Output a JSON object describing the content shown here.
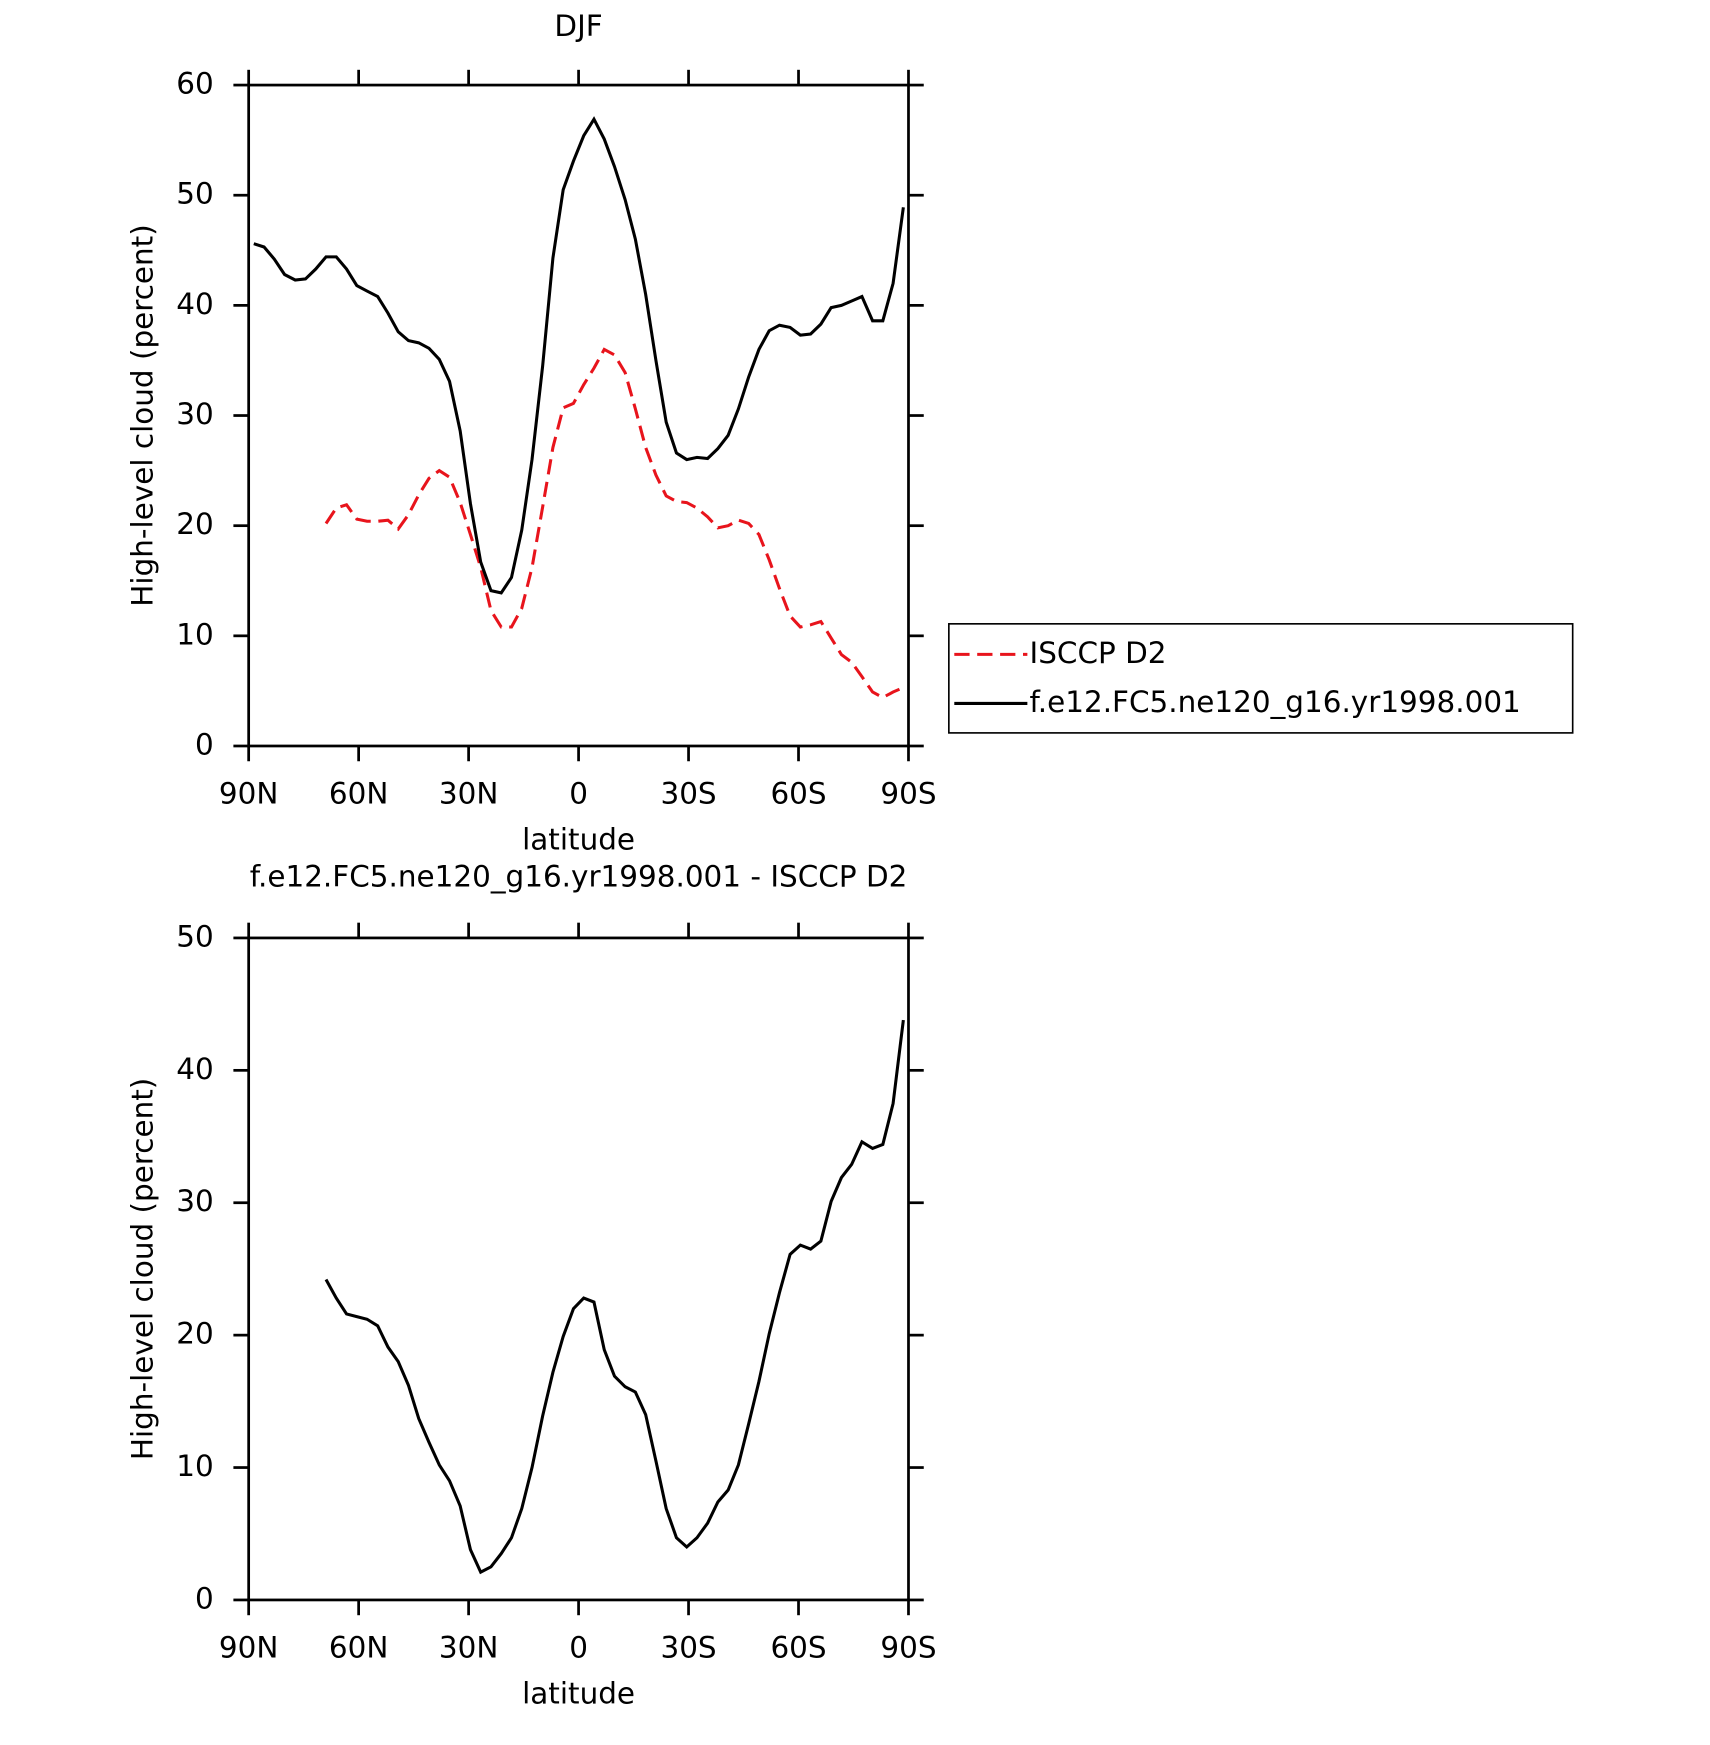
{
  "chart_data": [
    {
      "type": "line",
      "title": "DJF",
      "xlabel": "latitude",
      "ylabel": "High-level cloud (percent)",
      "x": [
        88.6,
        85.8,
        83.0,
        80.2,
        77.3,
        74.5,
        71.7,
        68.9,
        66.1,
        63.3,
        60.5,
        57.7,
        54.8,
        52.0,
        49.2,
        46.4,
        43.6,
        40.8,
        38.0,
        35.2,
        32.3,
        29.5,
        26.7,
        23.9,
        21.1,
        18.3,
        15.5,
        12.7,
        9.8,
        7.0,
        4.2,
        1.4,
        -1.4,
        -4.2,
        -7.0,
        -9.8,
        -12.7,
        -15.5,
        -18.3,
        -21.1,
        -23.9,
        -26.7,
        -29.5,
        -32.3,
        -35.2,
        -38.0,
        -40.8,
        -43.6,
        -46.4,
        -49.2,
        -52.0,
        -54.8,
        -57.7,
        -60.5,
        -63.3,
        -66.1,
        -68.9,
        -71.7,
        -74.5,
        -77.3,
        -80.2,
        -83.0,
        -85.8,
        -88.6
      ],
      "series": [
        {
          "name": "ISCCP D2",
          "color": "#e8141c",
          "dash": true,
          "values": [
            null,
            null,
            null,
            null,
            null,
            null,
            null,
            20.2,
            21.6,
            21.9,
            20.6,
            20.4,
            20.4,
            20.5,
            19.7,
            21,
            22.8,
            24.3,
            25,
            24.4,
            22.1,
            19.2,
            16.2,
            12.3,
            10.8,
            10.8,
            12.5,
            16.2,
            21.7,
            27.1,
            30.7,
            31.1,
            32.8,
            34.3,
            36,
            35.5,
            33.9,
            30.6,
            27.1,
            24.6,
            22.7,
            22.2,
            22.1,
            21.6,
            20.8,
            19.8,
            20,
            20.5,
            20.2,
            19.2,
            16.9,
            14.3,
            11.8,
            10.8,
            11,
            11.3,
            9.8,
            8.3,
            7.6,
            6.3,
            4.9,
            4.4,
            4.9,
            5.3
          ]
        },
        {
          "name": "f.e12.FC5.ne120_g16.yr1998.001",
          "color": "#000000",
          "dash": false,
          "values": [
            45.6,
            45.3,
            44.2,
            42.8,
            42.3,
            42.4,
            43.3,
            44.4,
            44.4,
            43.3,
            41.8,
            41.3,
            40.8,
            39.3,
            37.6,
            36.8,
            36.6,
            36.1,
            35.1,
            33.1,
            28.6,
            22,
            16.7,
            14.1,
            13.9,
            15.3,
            19.6,
            26,
            34.5,
            44.3,
            50.5,
            53.1,
            55.4,
            56.9,
            55.1,
            52.6,
            49.6,
            46,
            41,
            35,
            29.4,
            26.6,
            26,
            26.2,
            26.1,
            27,
            28.2,
            30.6,
            33.5,
            36,
            37.7,
            38.2,
            38,
            37.3,
            37.4,
            38.3,
            39.8,
            40,
            40.4,
            40.8,
            38.6,
            38.6,
            42,
            48.9
          ]
        }
      ],
      "xlim": [
        90,
        -90
      ],
      "xticks": [
        {
          "value": 90,
          "label": "90N"
        },
        {
          "value": 60,
          "label": "60N"
        },
        {
          "value": 30,
          "label": "30N"
        },
        0,
        {
          "value": -30,
          "label": "30S"
        },
        {
          "value": -60,
          "label": "60S"
        },
        {
          "value": -90,
          "label": "90S"
        }
      ],
      "ylim": [
        0,
        60
      ],
      "yticks": [
        0,
        10,
        20,
        30,
        40,
        50,
        60
      ],
      "legend": "right"
    },
    {
      "type": "line",
      "title": "f.e12.FC5.ne120_g16.yr1998.001 - ISCCP D2",
      "xlabel": "latitude",
      "ylabel": "High-level cloud (percent)",
      "x": [
        88.6,
        85.8,
        83.0,
        80.2,
        77.3,
        74.5,
        71.7,
        68.9,
        66.1,
        63.3,
        60.5,
        57.7,
        54.8,
        52.0,
        49.2,
        46.4,
        43.6,
        40.8,
        38.0,
        35.2,
        32.3,
        29.5,
        26.7,
        23.9,
        21.1,
        18.3,
        15.5,
        12.7,
        9.8,
        7.0,
        4.2,
        1.4,
        -1.4,
        -4.2,
        -7.0,
        -9.8,
        -12.7,
        -15.5,
        -18.3,
        -21.1,
        -23.9,
        -26.7,
        -29.5,
        -32.3,
        -35.2,
        -38.0,
        -40.8,
        -43.6,
        -46.4,
        -49.2,
        -52.0,
        -54.8,
        -57.7,
        -60.5,
        -63.3,
        -66.1,
        -68.9,
        -71.7,
        -74.5,
        -77.3,
        -80.2,
        -83.0,
        -85.8,
        -88.6
      ],
      "values": [
        null,
        null,
        null,
        null,
        null,
        null,
        null,
        24.2,
        22.8,
        21.6,
        21.4,
        21.2,
        20.7,
        19.1,
        18,
        16.2,
        13.7,
        11.9,
        10.2,
        9,
        7.1,
        3.8,
        2.1,
        2.5,
        3.5,
        4.7,
        6.9,
        10,
        13.9,
        17.2,
        19.9,
        22,
        22.8,
        22.5,
        18.9,
        16.9,
        16.1,
        15.7,
        14,
        10.5,
        6.9,
        4.7,
        4,
        4.7,
        5.8,
        7.4,
        8.3,
        10.2,
        13.3,
        16.5,
        20.1,
        23.2,
        26.1,
        26.8,
        26.5,
        27.1,
        30.1,
        31.9,
        32.9,
        34.6,
        34.1,
        34.4,
        37.5,
        43.8
      ],
      "color": "#000000",
      "xlim": [
        90,
        -90
      ],
      "xticks": [
        {
          "value": 90,
          "label": "90N"
        },
        {
          "value": 60,
          "label": "60N"
        },
        {
          "value": 30,
          "label": "30N"
        },
        0,
        {
          "value": -30,
          "label": "30S"
        },
        {
          "value": -60,
          "label": "60S"
        },
        {
          "value": -90,
          "label": "90S"
        }
      ],
      "ylim": [
        0,
        50
      ],
      "yticks": [
        0,
        10,
        20,
        30,
        40,
        50
      ]
    }
  ]
}
